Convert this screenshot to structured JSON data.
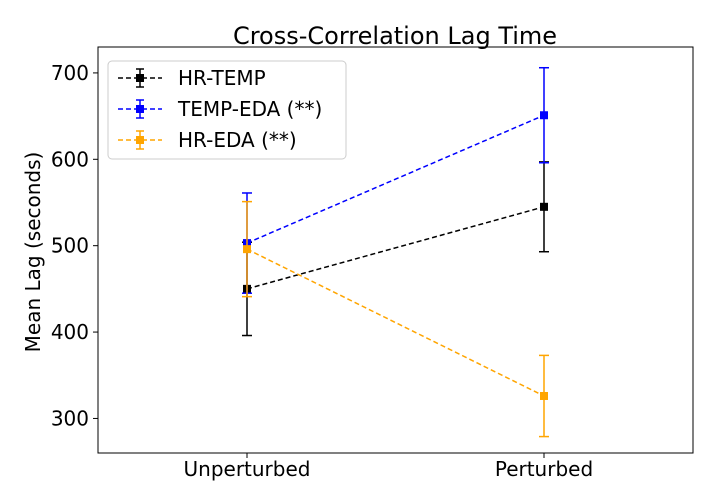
{
  "chart_data": {
    "type": "line",
    "title": "Cross-Correlation Lag Time",
    "xlabel": "",
    "ylabel": "Mean Lag (seconds)",
    "categories": [
      "Unperturbed",
      "Perturbed"
    ],
    "ylim": [
      260,
      730
    ],
    "yticks": [
      300,
      400,
      500,
      600,
      700
    ],
    "grid": false,
    "legend_position": "top-left",
    "series": [
      {
        "name": "HR-TEMP",
        "color": "#000000",
        "values": [
          450,
          545
        ],
        "errors": [
          54,
          52
        ],
        "marker": "square",
        "line_style": "dashed"
      },
      {
        "name": "TEMP-EDA (**)",
        "color": "#0000ff",
        "values": [
          503,
          651
        ],
        "errors": [
          58,
          55
        ],
        "marker": "square",
        "line_style": "dashed"
      },
      {
        "name": "HR-EDA (**)",
        "color": "#ffa500",
        "values": [
          496,
          326
        ],
        "errors": [
          55,
          47
        ],
        "marker": "square",
        "line_style": "dashed"
      }
    ]
  }
}
